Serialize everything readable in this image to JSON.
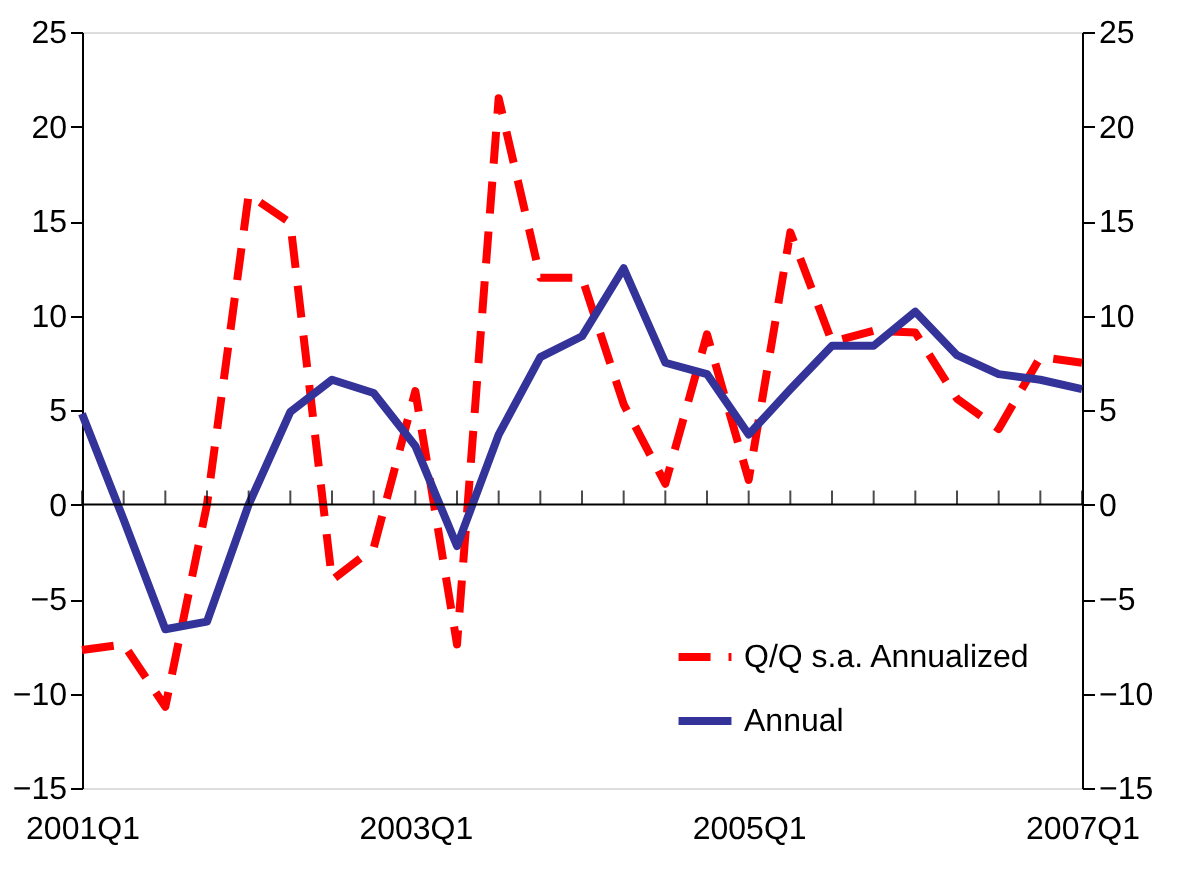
{
  "chart_data": {
    "type": "line",
    "categories": [
      "2001Q1",
      null,
      null,
      null,
      null,
      null,
      null,
      null,
      "2003Q1",
      null,
      null,
      null,
      null,
      null,
      null,
      null,
      "2005Q1",
      null,
      null,
      null,
      null,
      null,
      null,
      null,
      "2007Q1"
    ],
    "series": [
      {
        "name": "Q/Q s.a. Annualized",
        "color": "#ff0000",
        "line_style": "dashed",
        "values": [
          -7.7,
          -7.4,
          -10.7,
          0,
          16.4,
          14.9,
          -4.0,
          -2.3,
          6.0,
          -7.4,
          21.5,
          12.0,
          12.0,
          5.3,
          1.1,
          9.0,
          1.3,
          14.4,
          8.6,
          9.2,
          9.1,
          5.6,
          4.0,
          7.8,
          7.5
        ]
      },
      {
        "name": "Annual",
        "color": "#333399",
        "line_style": "solid",
        "values": [
          4.8,
          -0.8,
          -6.6,
          -6.2,
          0,
          4.9,
          6.6,
          5.9,
          3.1,
          -2.2,
          3.7,
          7.8,
          8.9,
          12.5,
          7.5,
          6.9,
          3.7,
          6.1,
          8.4,
          8.4,
          10.2,
          7.9,
          6.9,
          6.6,
          6.1
        ]
      }
    ],
    "ylim": [
      -15,
      25
    ],
    "yticks": [
      -15,
      -10,
      -5,
      0,
      5,
      10,
      15,
      20,
      25
    ],
    "y2lim": [
      -15,
      25
    ],
    "y2ticks": [
      -15,
      -10,
      -5,
      0,
      5,
      10,
      15,
      20,
      25
    ],
    "ref_lines": [
      {
        "axis": "y",
        "value": 0
      }
    ],
    "grid": false,
    "legend": "bottom right"
  }
}
